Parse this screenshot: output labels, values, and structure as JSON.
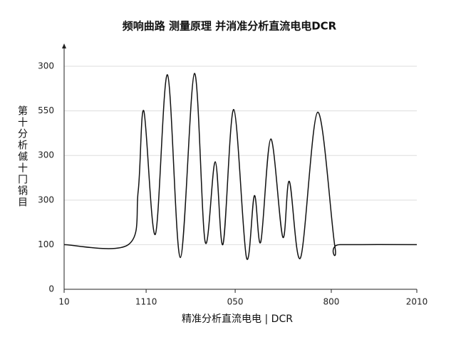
{
  "chart_data": {
    "type": "line",
    "title": "频响曲路 测量原理 并消准分析直流电电DCR",
    "x_label": "精准分析直流电电 | DCR",
    "y_label": "第十分析傶十冂锅目",
    "xlim": [
      0,
      2000
    ],
    "xticks": [
      {
        "value": 0,
        "label": "10"
      },
      {
        "value": 465,
        "label": "1110"
      },
      {
        "value": 970,
        "label": "050"
      },
      {
        "value": 1515,
        "label": "800"
      },
      2000
    ],
    "xtick_last_label": "2010",
    "ylim": [
      0,
      540
    ],
    "yticks": [
      0,
      100,
      {
        "value": 200,
        "label": "300"
      },
      300,
      {
        "value": 400,
        "label": "550"
      },
      {
        "value": 500,
        "label": "300"
      }
    ],
    "grid": true,
    "series": [
      {
        "color": "#111111",
        "x": [
          0,
          364,
          420,
          452,
          517,
          586,
          659,
          739,
          800,
          857,
          901,
          962,
          1034,
          1079,
          1115,
          1172,
          1240,
          1277,
          1341,
          1438,
          1535,
          1563,
          2000
        ],
        "values": [
          100,
          100,
          220,
          400,
          123,
          481,
          71,
          484,
          106,
          286,
          101,
          403,
          71,
          210,
          106,
          337,
          117,
          242,
          71,
          397,
          97,
          100,
          100
        ]
      }
    ]
  }
}
